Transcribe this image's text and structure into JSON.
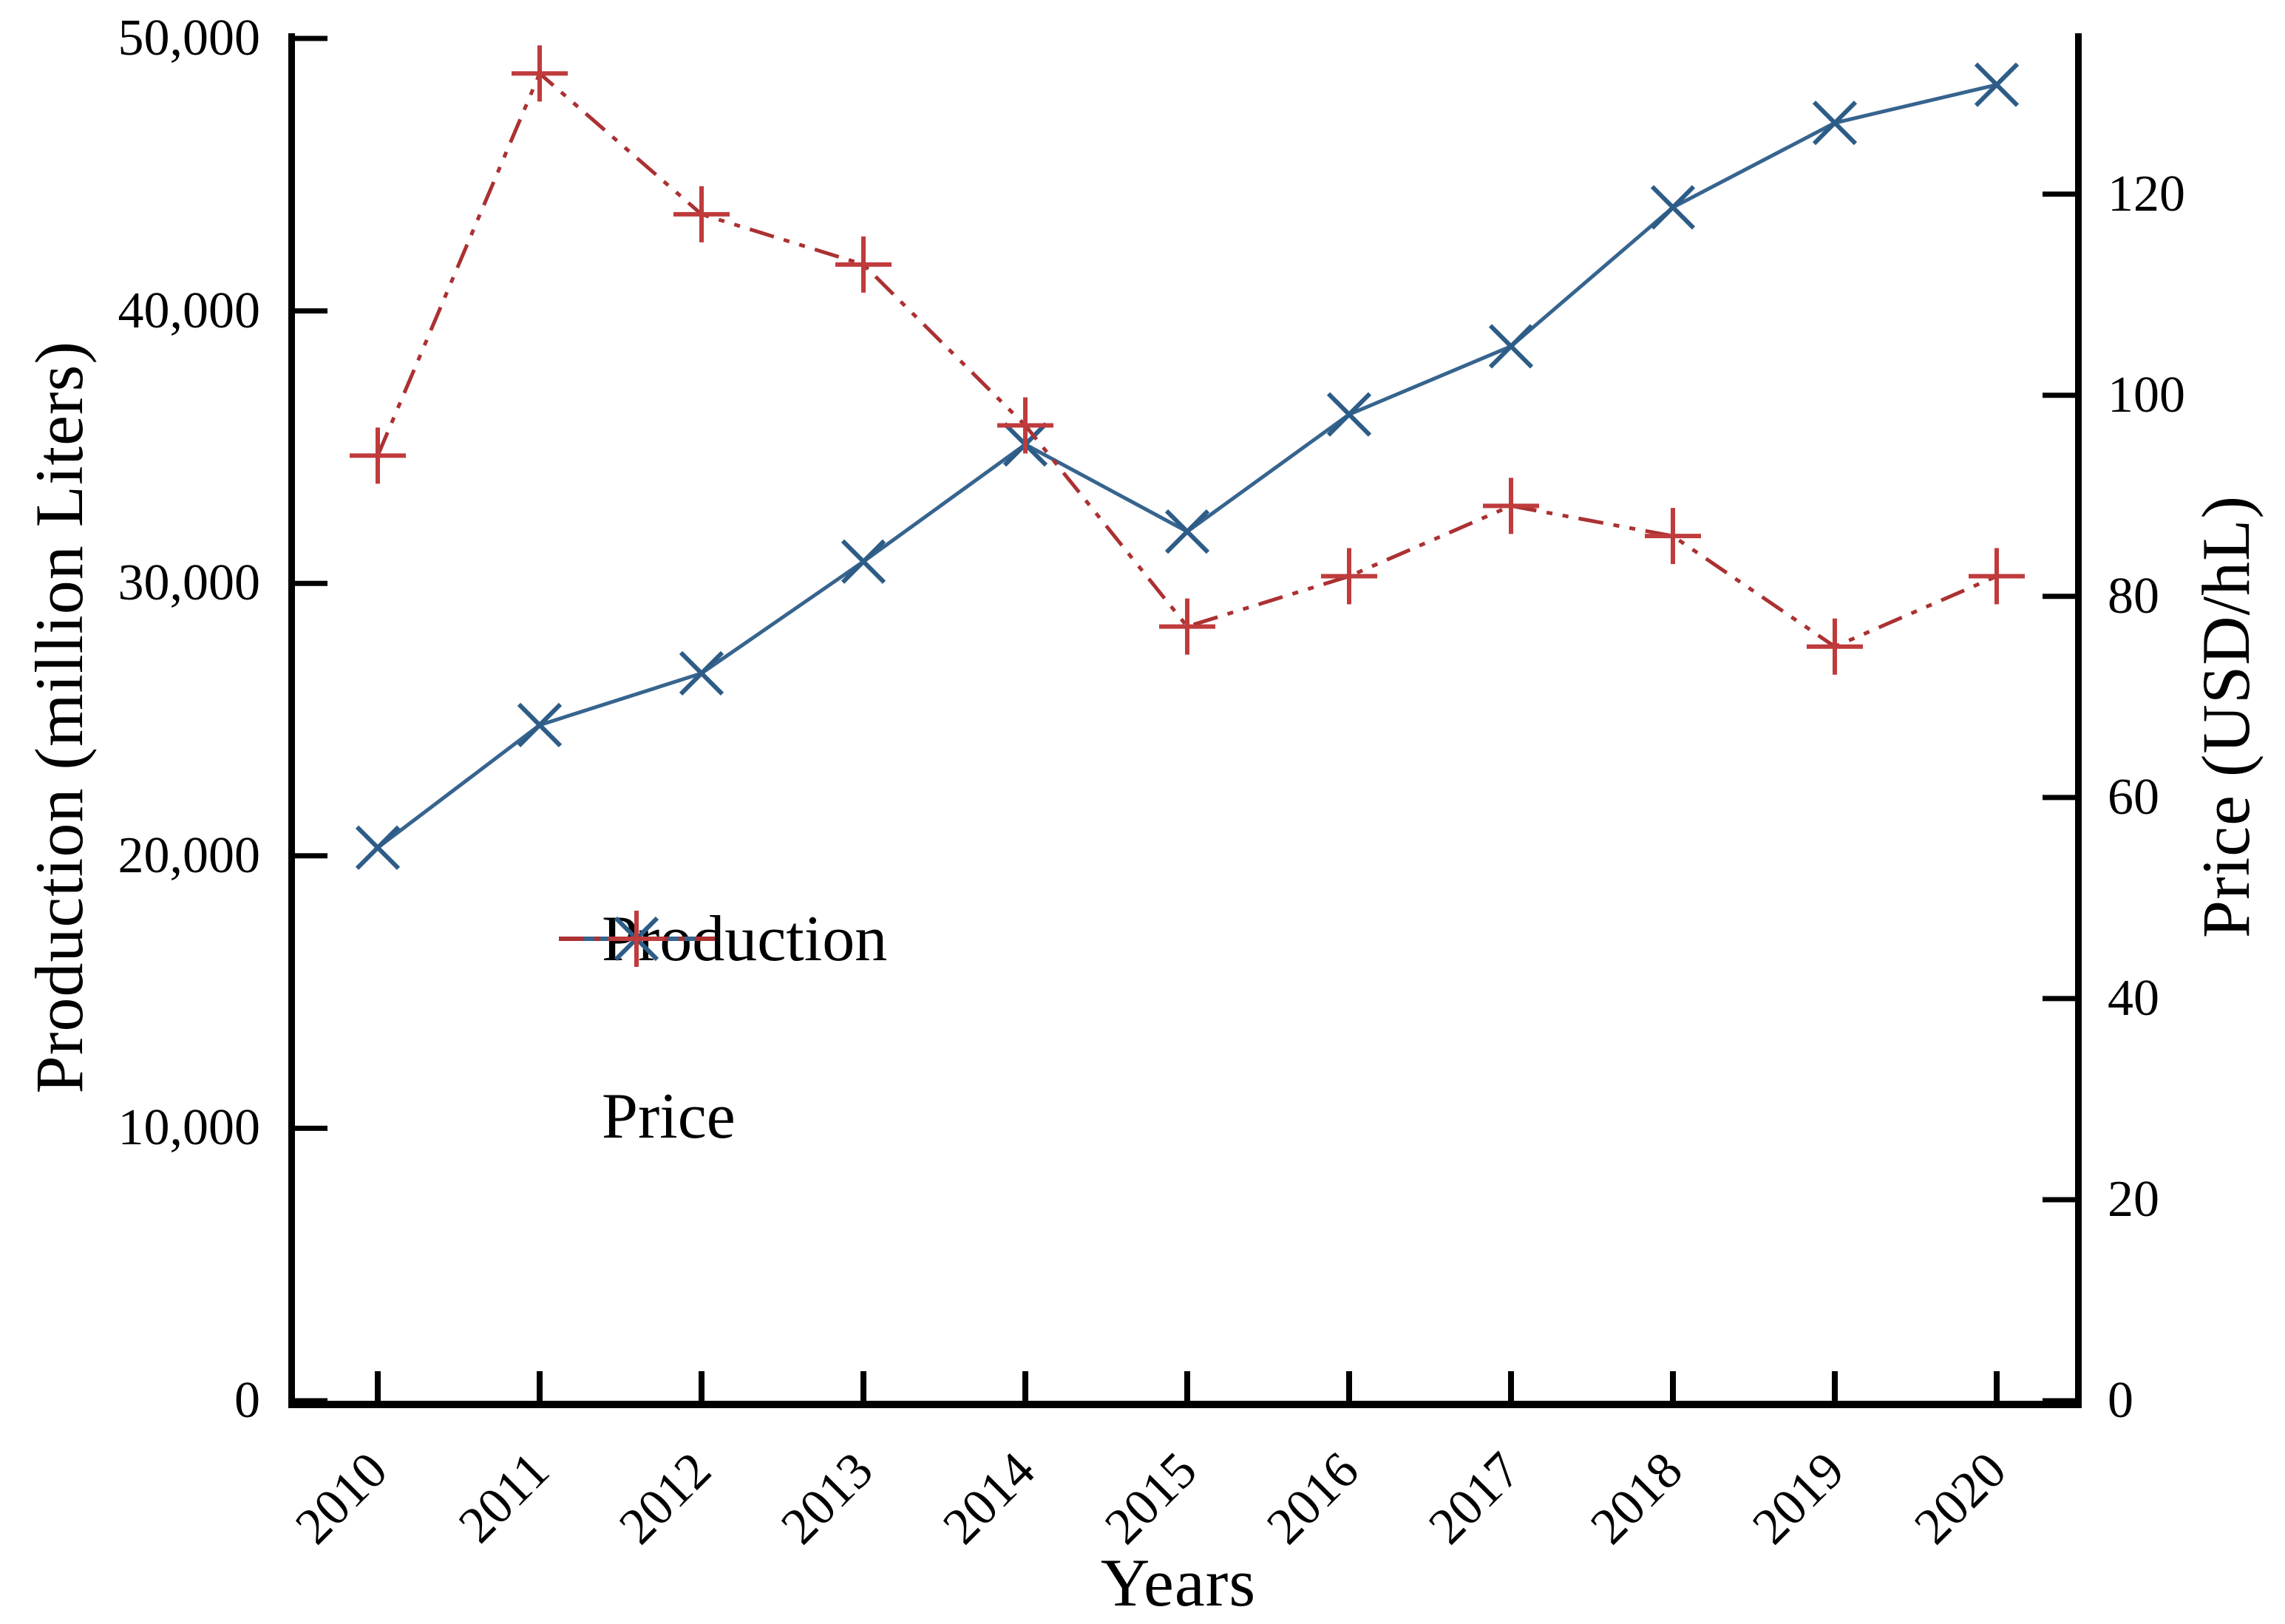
{
  "chart_data": {
    "type": "line",
    "title": "",
    "xlabel": "Years",
    "ylabel_left": "Production (million Liters)",
    "ylabel_right": "Price (USD/hL)",
    "x": [
      2010,
      2011,
      2012,
      2013,
      2014,
      2015,
      2016,
      2017,
      2018,
      2019,
      2020
    ],
    "x_tick_labels": [
      "2010",
      "2011",
      "2012",
      "2013",
      "2014",
      "2015",
      "2016",
      "2017",
      "2018",
      "2019",
      "2020"
    ],
    "series": [
      {
        "name": "Production",
        "axis": "left",
        "marker": "x",
        "line_style": "solid",
        "line_color": "#36648e",
        "marker_color": "#2d5c87",
        "values": [
          20300,
          24800,
          26700,
          30800,
          35100,
          31900,
          36200,
          38700,
          43800,
          46900,
          48300
        ]
      },
      {
        "name": "Price",
        "axis": "right",
        "marker": "+",
        "line_style": "dash-dot-dot",
        "line_color": "#ab3132",
        "marker_color": "#bf3b3c",
        "values": [
          94,
          132,
          118,
          113,
          97,
          77,
          82,
          89,
          86,
          75,
          82
        ]
      }
    ],
    "yaxis_left": {
      "range": [
        0,
        50000
      ],
      "ticks": [
        0,
        10000,
        20000,
        30000,
        40000,
        50000
      ],
      "labels": [
        "0",
        "10,000",
        "20,000",
        "30,000",
        "40,000",
        "50,000"
      ]
    },
    "yaxis_right": {
      "range": [
        0,
        136
      ],
      "ticks": [
        0,
        20,
        40,
        60,
        80,
        100,
        120
      ],
      "labels": [
        "0",
        "20",
        "40",
        "60",
        "80",
        "100",
        "120"
      ]
    },
    "grid": false,
    "legend_position": "inside-left-lower-middle",
    "colors": {
      "axis": "#000000",
      "background": "#ffffff"
    }
  }
}
